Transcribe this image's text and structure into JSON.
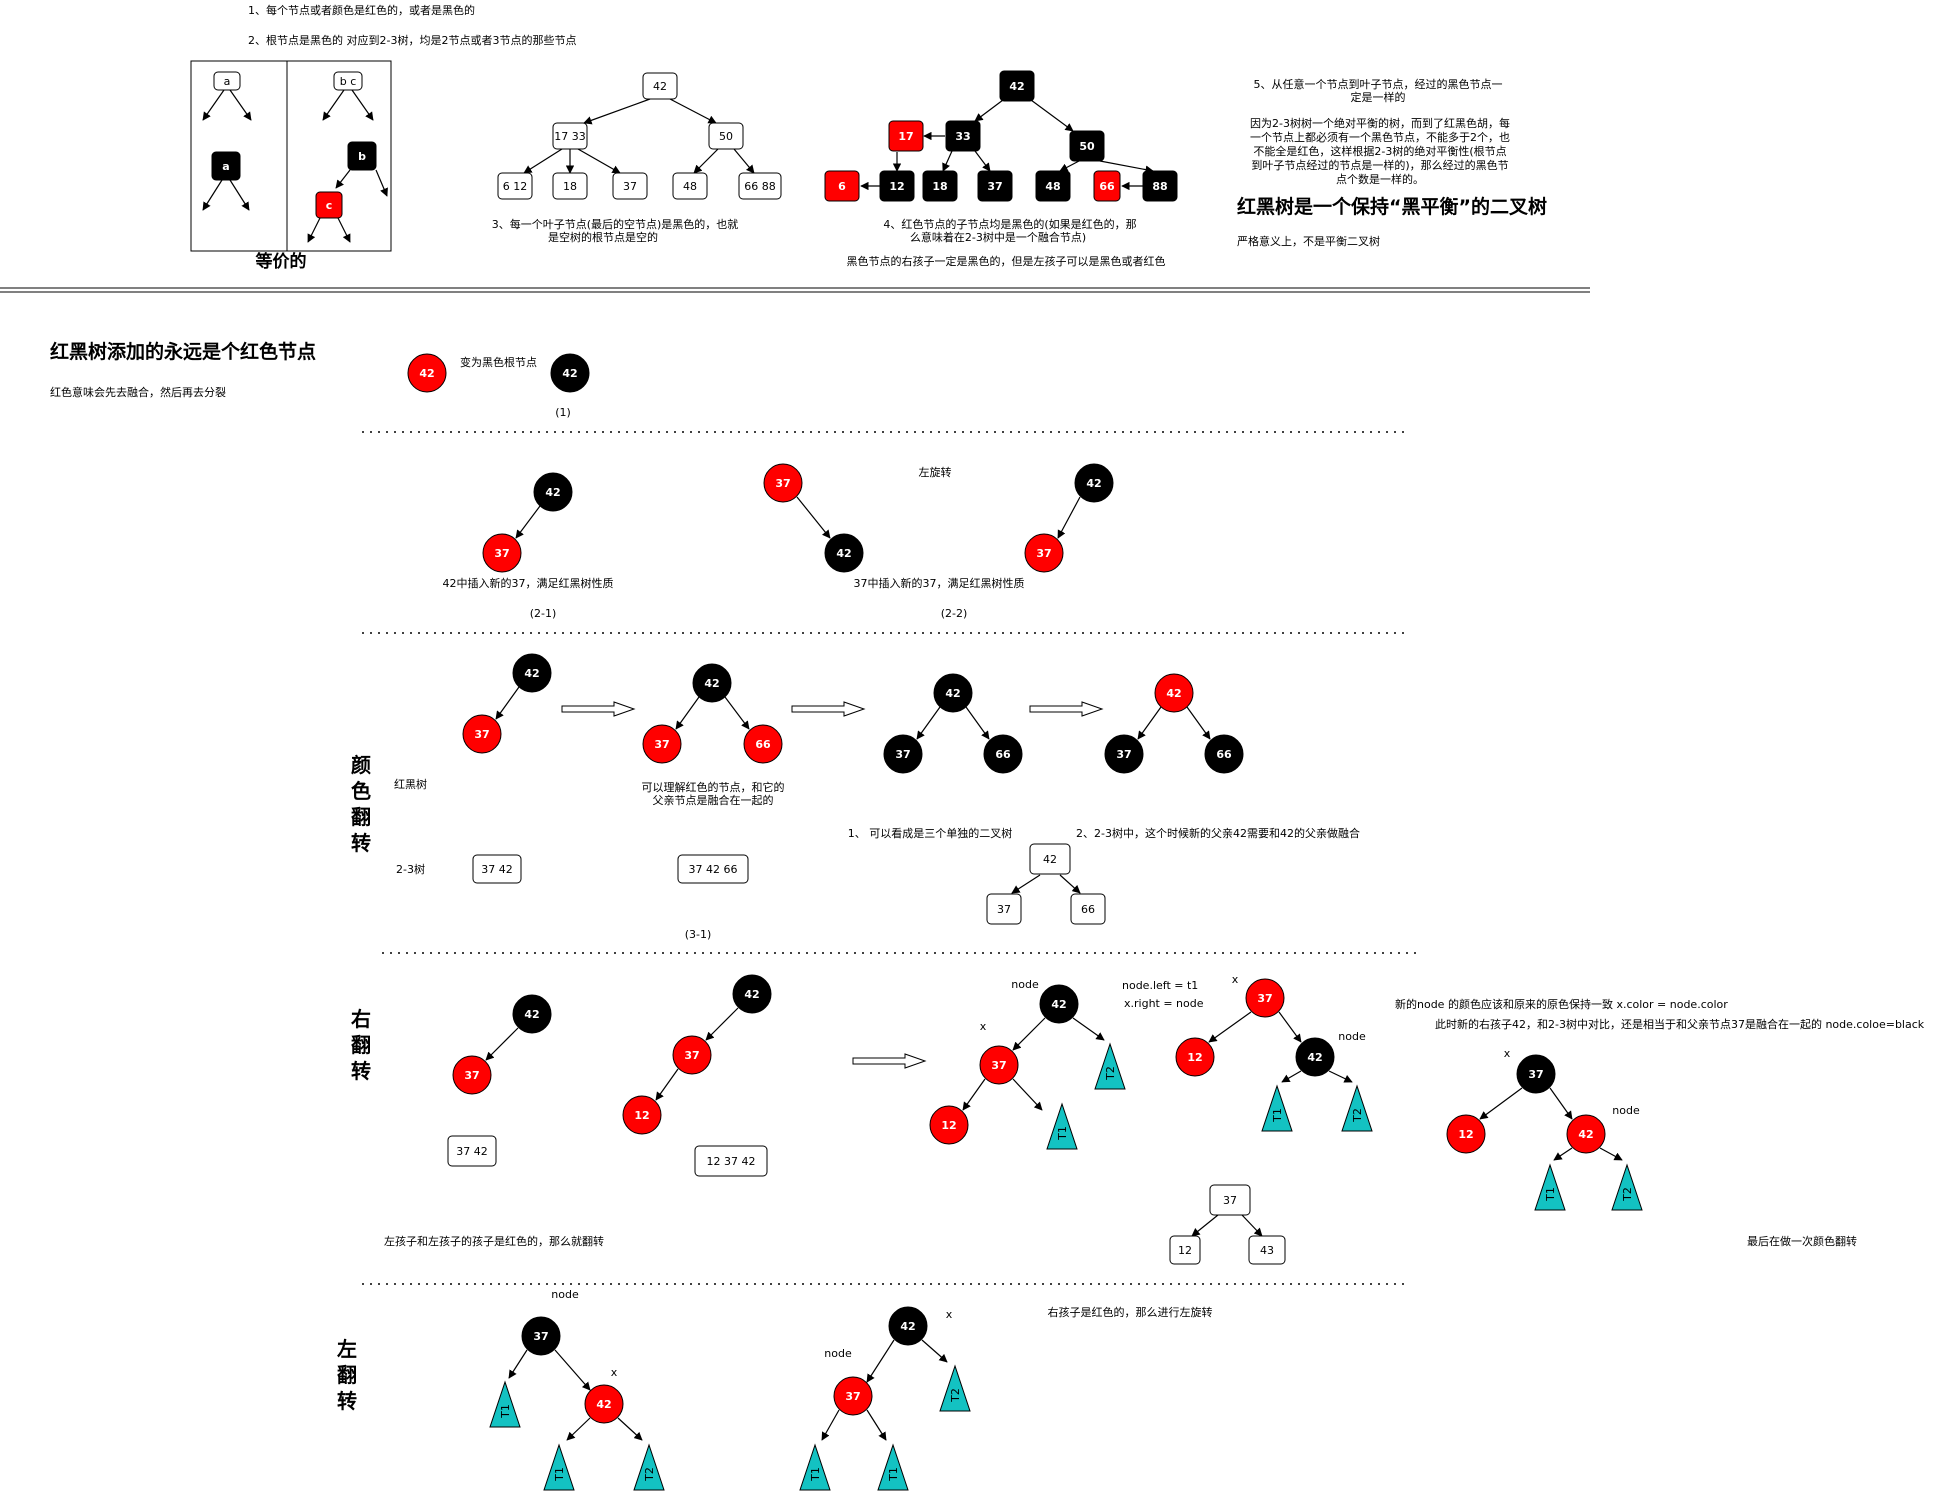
{
  "colors": {
    "red": "#ff0000",
    "black": "#000000",
    "teal": "#13c2c2",
    "white": "#ffffff",
    "stroke": "#000000"
  },
  "texts": {
    "rule1": "1、每个节点或者颜色是红色的，或者是黑色的",
    "rule2": "2、根节点是黑色的    对应到2-3树，均是2节点或者3节点的那些节点",
    "rule3a": "3、每一个叶子节点(最后的空节点)是黑色的，也就",
    "rule3b": "是空树的根节点是空的",
    "rule4a": "4、红色节点的子节点均是黑色的(如果是红色的，那",
    "rule4b": "么意味着在2-3树中是一个融合节点)",
    "rule4c": "黑色节点的右孩子一定是黑色的，但是左孩子可以是黑色或者红色",
    "rule5a": "5、从任意一个节点到叶子节点，经过的黑色节点一",
    "rule5b": "定是一样的",
    "why1": "因为2-3树树一个绝对平衡的树，而到了红黑色胡，每",
    "why2": "一个节点上都必须有一个黑色节点，不能多于2个，也",
    "why3": "不能全是红色，这样根据2-3树的绝对平衡性(根节点",
    "why4": "到叶子节点经过的节点是一样的)，那么经过的黑色节",
    "why5": "点个数是一样的。",
    "headline": "红黑树是一个保持“黑平衡”的二叉树",
    "strict": "严格意义上，不是平衡二叉树",
    "equivalent": "等价的",
    "addTitle": "红黑树添加的永远是个红色节点",
    "addSub": "红色意味会先去融合，然后再去分裂",
    "toBlackRoot": "变为黑色根节点",
    "label_1": "(1)",
    "insert37": "42中插入新的37，满足红黑树性质",
    "label_2_1": "(2-1)",
    "rotateLeft": "左旋转",
    "insert42": "37中插入新的37，满足红黑树性质",
    "label_2_2": "(2-2)",
    "colorFlip": "颜色翻转",
    "rbTree": "红黑树",
    "tree23": "2-3树",
    "fuse1": "可以理解红色的节点，和它的",
    "fuse2": "父亲节点是融合在一起的",
    "threeTrees": "1、 可以看成是三个单独的二叉树",
    "parentFuse": "2、2-3树中，这个时候新的父亲42需要和42的父亲做融合",
    "label_3_1": "(3-1)",
    "rightFlip": "右翻转",
    "leftLeftRed": "左孩子和左孩子的孩子是红色的，那么就翻转",
    "nodeLeft": "node.left = t1",
    "xRight": "x.right = node",
    "newNodeColor": "新的node 的颜色应该和原来的原色保持一致 x.color = node.color",
    "newRightChild": "此时新的右孩子42，和2-3树中对比，还是相当于和父亲节点37是融合在一起的 node.coloe=black",
    "lastFlip": "最后在做一次颜色翻转",
    "leftFlip": "左翻转",
    "rightRed": "右孩子是红色的，那么进行左旋转",
    "node": "node",
    "x": "x",
    "T1": "T1",
    "T2": "T2"
  },
  "nodes": {
    "a": "a",
    "bc": "b c",
    "b": "b",
    "c": "c",
    "n6": "6",
    "n12": "12",
    "n17": "17",
    "n18": "18",
    "n33": "33",
    "n37": "37",
    "n42": "42",
    "n43": "43",
    "n48": "48",
    "n50": "50",
    "n66": "66",
    "n88": "88",
    "n17_33": "17 33",
    "n6_12": "6 12",
    "n66_88": "66  88",
    "k37_42": "37   42",
    "k37_42_66": "37   42  66",
    "k12_37_42": "12  37   42"
  }
}
